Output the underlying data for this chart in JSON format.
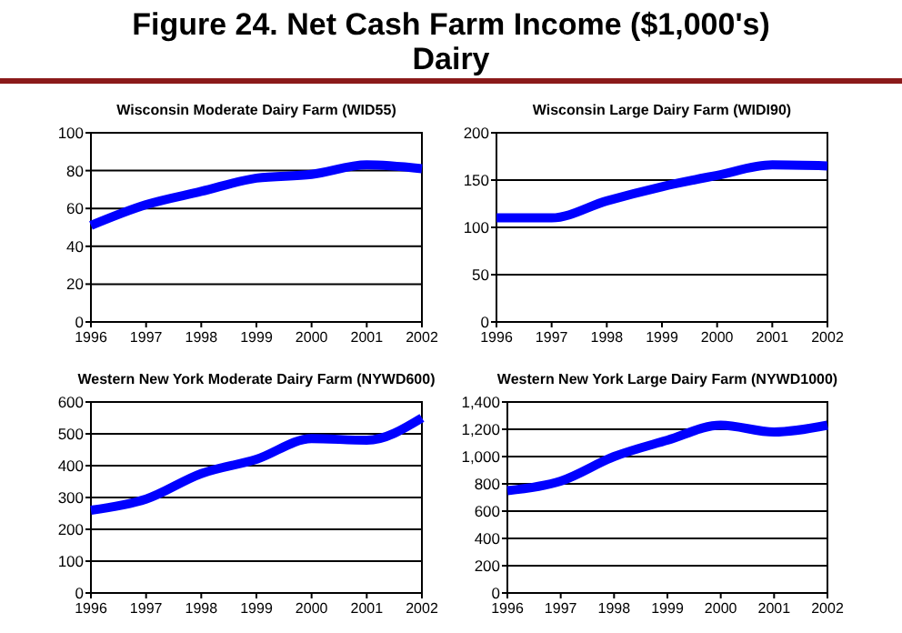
{
  "chart_data": [
    {
      "type": "line",
      "title": "Figure 24. Net Cash Farm Income ($1,000's)",
      "subtitle": "Dairy",
      "xlim": [
        1996,
        2002
      ],
      "xticks": [
        1996,
        1997,
        1998,
        1999,
        2000,
        2001,
        2002
      ],
      "ylim": [
        0,
        100
      ],
      "yticks": [
        0,
        20,
        40,
        60,
        80,
        100
      ],
      "grid": "y",
      "series": [
        {
          "name": "Wisconsin Moderate Dairy Farm (WID55)",
          "color": "#0000ff",
          "x": [
            1996,
            1997,
            1998,
            1999,
            2000,
            2001,
            2002
          ],
          "values": [
            51,
            62,
            69,
            76,
            78,
            83,
            81
          ]
        }
      ]
    },
    {
      "type": "line",
      "xlim": [
        1996,
        2002
      ],
      "xticks": [
        1996,
        1997,
        1998,
        1999,
        2000,
        2001,
        2002
      ],
      "ylim": [
        0,
        200
      ],
      "yticks": [
        0,
        50,
        100,
        150,
        200
      ],
      "grid": "y",
      "series": [
        {
          "name": "Wisconsin Large Dairy Farm (WIDI90)",
          "color": "#0000ff",
          "x": [
            1996,
            1997,
            1998,
            1999,
            2000,
            2001,
            2002
          ],
          "values": [
            110,
            110,
            128,
            143,
            155,
            166,
            165
          ]
        }
      ]
    },
    {
      "type": "line",
      "xlim": [
        1996,
        2002
      ],
      "xticks": [
        1996,
        1997,
        1998,
        1999,
        2000,
        2001,
        2002
      ],
      "ylim": [
        0,
        600
      ],
      "yticks": [
        0,
        100,
        200,
        300,
        400,
        500,
        600
      ],
      "grid": "y",
      "series": [
        {
          "name": "Western New York Moderate Dairy Farm (NYWD600)",
          "color": "#0000ff",
          "x": [
            1996,
            1997,
            1998,
            1999,
            2000,
            2001,
            2002
          ],
          "values": [
            260,
            295,
            375,
            420,
            485,
            480,
            550
          ]
        }
      ]
    },
    {
      "type": "line",
      "xlim": [
        1996,
        2002
      ],
      "xticks": [
        1996,
        1997,
        1998,
        1999,
        2000,
        2001,
        2002
      ],
      "ylim": [
        0,
        1400
      ],
      "yticks": [
        0,
        200,
        400,
        600,
        800,
        {
          "value": 1000,
          "label": "1,000"
        },
        {
          "value": 1200,
          "label": "1,200"
        },
        {
          "value": 1400,
          "label": "1,400"
        }
      ],
      "grid": "y",
      "series": [
        {
          "name": "Western New York Large Dairy Farm (NYWD1000)",
          "color": "#0000ff",
          "x": [
            1996,
            1997,
            1998,
            1999,
            2000,
            2001,
            2002
          ],
          "values": [
            750,
            820,
            1000,
            1120,
            1230,
            1180,
            1230
          ]
        }
      ]
    }
  ]
}
